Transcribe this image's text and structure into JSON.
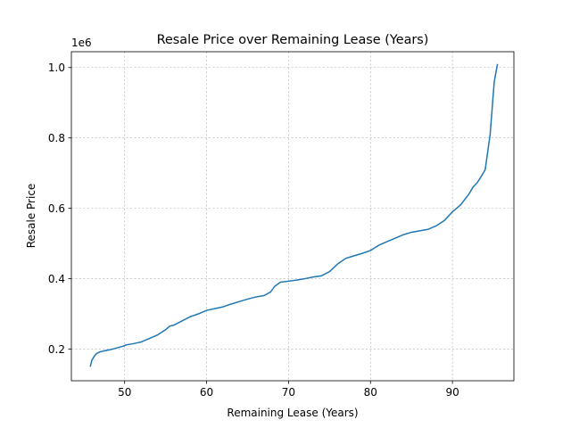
{
  "chart_data": {
    "type": "line",
    "title": "Resale Price over Remaining Lease (Years)",
    "xlabel": "Remaining Lease (Years)",
    "ylabel": "Resale Price",
    "y_offset_label": "1e6",
    "xlim": [
      43.5,
      97.5
    ],
    "ylim": [
      110000,
      1045000
    ],
    "x_ticks": [
      50,
      60,
      70,
      80,
      90
    ],
    "x_tick_labels": [
      "50",
      "60",
      "70",
      "80",
      "90"
    ],
    "y_ticks": [
      200000,
      400000,
      600000,
      800000,
      1000000
    ],
    "y_tick_labels": [
      "0.2",
      "0.4",
      "0.6",
      "0.8",
      "1.0"
    ],
    "grid": true,
    "line_color": "#1f77b4",
    "series": [
      {
        "x": [
          45.8,
          46.0,
          46.3,
          46.6,
          47.0,
          47.5,
          48.2,
          49.0,
          49.8,
          50.2,
          51.0,
          52.0,
          53.0,
          54.0,
          55.0,
          55.5,
          56.0,
          57.0,
          58.0,
          59.0,
          60.0,
          61.0,
          62.0,
          63.0,
          64.0,
          65.0,
          66.0,
          67.0,
          67.8,
          68.3,
          69.0,
          70.0,
          71.0,
          72.0,
          73.0,
          74.0,
          75.0,
          76.0,
          77.0,
          78.0,
          79.0,
          80.0,
          81.0,
          82.0,
          83.0,
          84.0,
          85.0,
          86.0,
          87.0,
          88.0,
          89.0,
          90.0,
          91.0,
          92.0,
          92.5,
          93.0,
          93.5,
          94.0,
          94.3,
          94.6,
          94.9,
          95.1,
          95.3,
          95.5
        ],
        "y": [
          150000,
          168000,
          180000,
          188000,
          192000,
          195000,
          198000,
          203000,
          208000,
          212000,
          215000,
          220000,
          230000,
          240000,
          255000,
          265000,
          268000,
          280000,
          292000,
          300000,
          310000,
          315000,
          320000,
          328000,
          335000,
          342000,
          348000,
          352000,
          362000,
          378000,
          390000,
          393000,
          396000,
          400000,
          405000,
          408000,
          420000,
          442000,
          458000,
          465000,
          472000,
          480000,
          495000,
          505000,
          515000,
          525000,
          532000,
          536000,
          540000,
          550000,
          565000,
          590000,
          610000,
          640000,
          660000,
          672000,
          690000,
          710000,
          760000,
          810000,
          900000,
          960000,
          985000,
          1010000
        ]
      }
    ]
  }
}
